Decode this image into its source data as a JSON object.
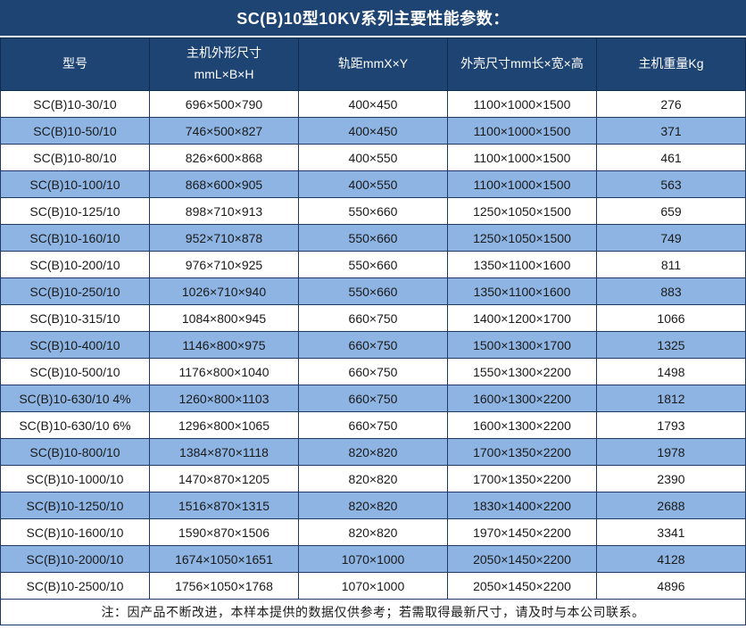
{
  "title": "SC(B)10型10KV系列主要性能参数：",
  "table": {
    "headers": [
      {
        "label": "型号",
        "sublabel": ""
      },
      {
        "label": "主机外形尺寸",
        "sublabel": "mmL×B×H"
      },
      {
        "label": "轨距mmX×Y",
        "sublabel": ""
      },
      {
        "label": "外壳尺寸mm长×宽×高",
        "sublabel": ""
      },
      {
        "label": "主机重量Kg",
        "sublabel": ""
      }
    ],
    "rows": [
      [
        "SC(B)10-30/10",
        "696×500×790",
        "400×450",
        "1100×1000×1500",
        "276"
      ],
      [
        "SC(B)10-50/10",
        "746×500×827",
        "400×450",
        "1100×1000×1500",
        "371"
      ],
      [
        "SC(B)10-80/10",
        "826×600×868",
        "400×550",
        "1100×1000×1500",
        "461"
      ],
      [
        "SC(B)10-100/10",
        "868×600×905",
        "400×550",
        "1100×1000×1500",
        "563"
      ],
      [
        "SC(B)10-125/10",
        "898×710×913",
        "550×660",
        "1250×1050×1500",
        "659"
      ],
      [
        "SC(B)10-160/10",
        "952×710×878",
        "550×660",
        "1250×1050×1500",
        "749"
      ],
      [
        "SC(B)10-200/10",
        "976×710×925",
        "550×660",
        "1350×1100×1600",
        "811"
      ],
      [
        "SC(B)10-250/10",
        "1026×710×940",
        "550×660",
        "1350×1100×1600",
        "883"
      ],
      [
        "SC(B)10-315/10",
        "1084×800×945",
        "660×750",
        "1400×1200×1700",
        "1066"
      ],
      [
        "SC(B)10-400/10",
        "1146×800×975",
        "660×750",
        "1500×1300×1700",
        "1325"
      ],
      [
        "SC(B)10-500/10",
        "1176×800×1040",
        "660×750",
        "1550×1300×2200",
        "1498"
      ],
      [
        "SC(B)10-630/10 4%",
        "1260×800×1103",
        "660×750",
        "1600×1300×2200",
        "1812"
      ],
      [
        "SC(B)10-630/10 6%",
        "1296×800×1065",
        "660×750",
        "1600×1300×2200",
        "1793"
      ],
      [
        "SC(B)10-800/10",
        "1384×870×1118",
        "820×820",
        "1700×1350×2200",
        "1978"
      ],
      [
        "SC(B)10-1000/10",
        "1470×870×1205",
        "820×820",
        "1700×1350×2200",
        "2390"
      ],
      [
        "SC(B)10-1250/10",
        "1516×870×1315",
        "820×820",
        "1830×1400×2200",
        "2688"
      ],
      [
        "SC(B)10-1600/10",
        "1590×870×1506",
        "820×820",
        "1970×1450×2200",
        "3341"
      ],
      [
        "SC(B)10-2000/10",
        "1674×1050×1651",
        "1070×1000",
        "2050×1450×2200",
        "4128"
      ],
      [
        "SC(B)10-2500/10",
        "1756×1050×1768",
        "1070×1000",
        "2050×1450×2200",
        "4896"
      ]
    ]
  },
  "footer_note": "注：因产品不断改进，本样本提供的数据仅供参考；若需取得最新尺寸，请及时与本公司联系。",
  "colors": {
    "header_bg": "#1e4473",
    "header_text": "#ffffff",
    "alt_row_bg": "#8db4e2",
    "row_bg": "#ffffff",
    "border": "#1f3864",
    "body_text": "#1a1a1a"
  }
}
